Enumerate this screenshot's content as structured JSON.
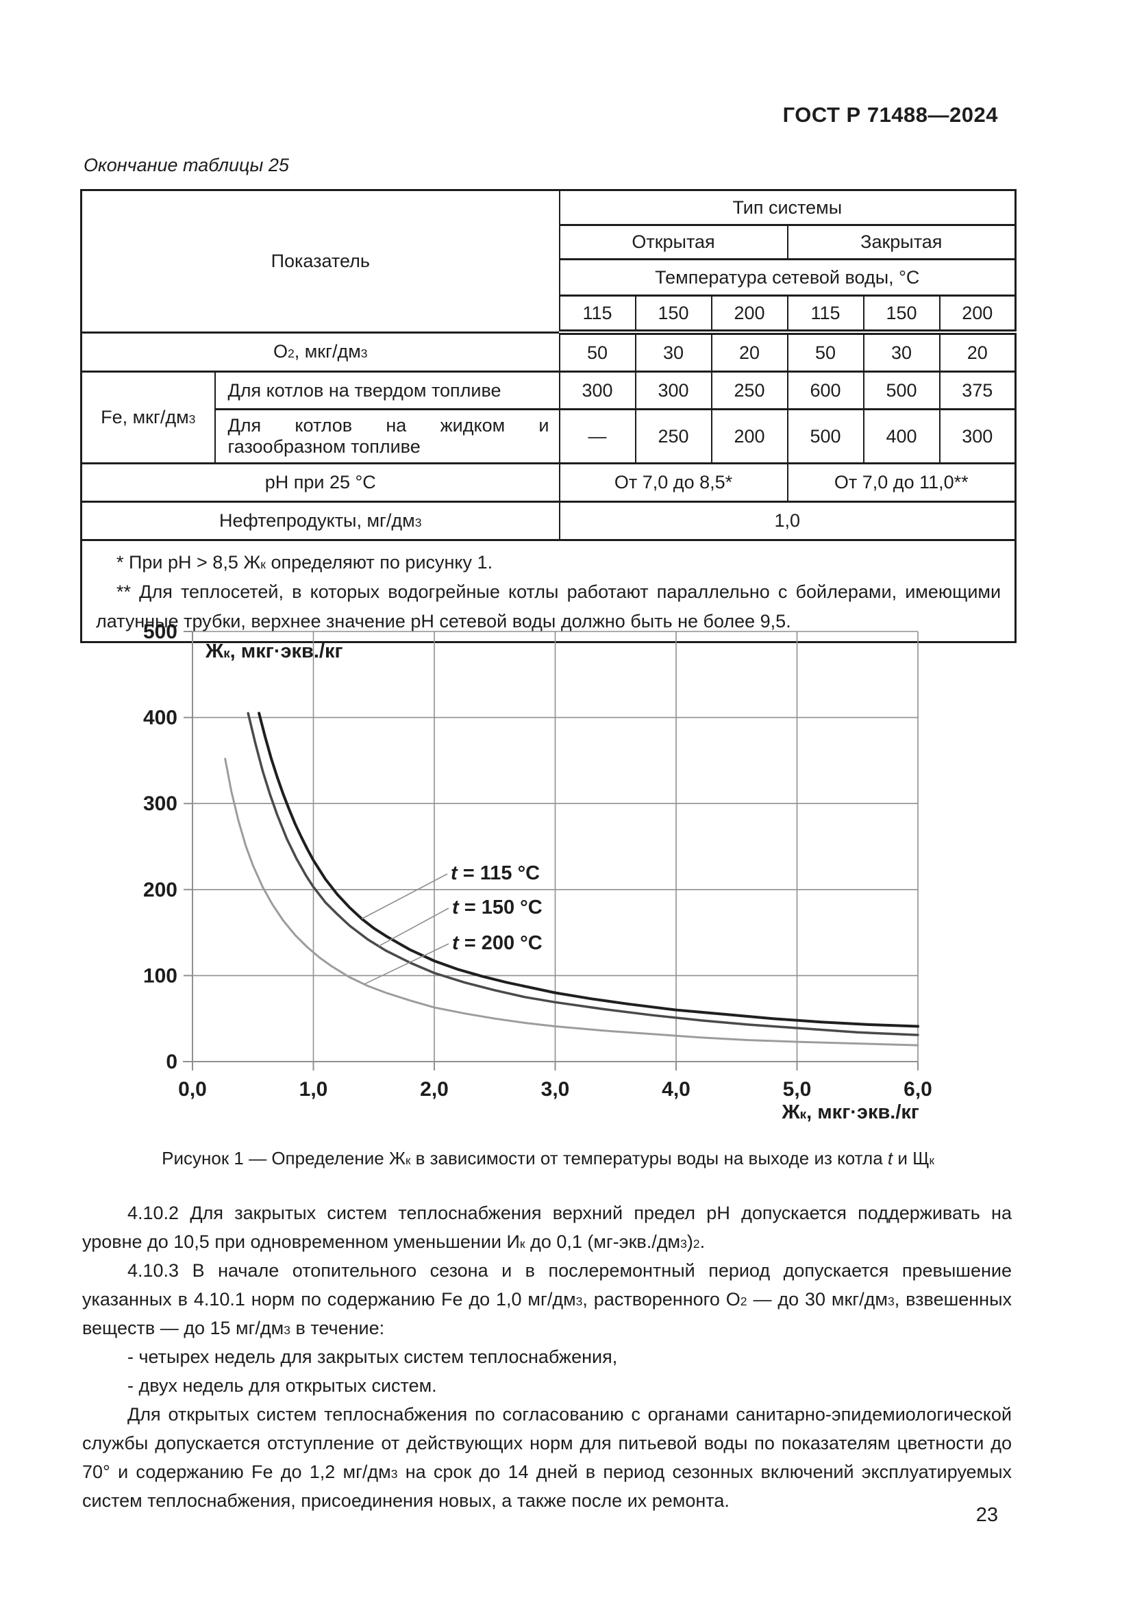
{
  "doc": {
    "header": "ГОСТ Р 71488—2024",
    "page_number": "23"
  },
  "table": {
    "caption": "Окончание таблицы 25",
    "header": {
      "pokazatel": "Показатель",
      "tip_sistemy": "Тип системы",
      "otkrytaya": "Открытая",
      "zakrytaya": "Закрытая",
      "temperatura": "Температура сетевой воды, °С",
      "ticks": [
        "115",
        "150",
        "200",
        "115",
        "150",
        "200"
      ]
    },
    "rows": {
      "o2": {
        "label_runs": [
          {
            "t": "О"
          },
          {
            "sub": "2"
          },
          {
            "t": ", мкг/дм"
          },
          {
            "sup": "3"
          }
        ],
        "values": [
          "50",
          "30",
          "20",
          "50",
          "30",
          "20"
        ]
      },
      "fe": {
        "label_runs": [
          {
            "t": "Fe, мкг/дм"
          },
          {
            "sup": "3"
          }
        ],
        "sub1": {
          "label": "Для котлов на твердом топливе",
          "values": [
            "300",
            "300",
            "250",
            "600",
            "500",
            "375"
          ]
        },
        "sub2": {
          "label": "Для котлов на жидком и газообразном топливе",
          "values": [
            "—",
            "250",
            "200",
            "500",
            "400",
            "300"
          ]
        }
      },
      "ph": {
        "label": "pH при 25 °С",
        "open": "От 7,0 до 8,5*",
        "closed": "От 7,0 до 11,0**"
      },
      "neft": {
        "label_runs": [
          {
            "t": "Нефтепродукты, мг/дм"
          },
          {
            "sup": "3"
          }
        ],
        "value": "1,0"
      }
    },
    "footnotes": [
      [
        {
          "t": "*  При pH > 8,5 Ж"
        },
        {
          "sub": "к"
        },
        {
          "t": " определяют по рисунку 1."
        }
      ],
      [
        {
          "t": "**  Для теплосетей, в которых водогрейные котлы работают параллельно с бойлерами, имеющими латунные трубки, верхнее значение pH сетевой воды должно быть не более 9,5."
        }
      ]
    ]
  },
  "chart_data": {
    "type": "line",
    "title": "",
    "xlabel": "Жк, мкг·экв./кг",
    "ylabel": "Жк, мкг·экв./кг",
    "xlim": [
      0,
      6
    ],
    "ylim": [
      0,
      500
    ],
    "grid": true,
    "x_ticks": [
      "0,0",
      "1,0",
      "2,0",
      "3,0",
      "4,0",
      "5,0",
      "6,0"
    ],
    "y_ticks": [
      "0",
      "100",
      "200",
      "300",
      "400",
      "500"
    ],
    "y_unit_runs": [
      {
        "t": "Ж"
      },
      {
        "sub": "к"
      },
      {
        "t": ", мкг·экв./кг"
      }
    ],
    "x_unit_runs": [
      {
        "t": "Ж"
      },
      {
        "sub": "к"
      },
      {
        "t": ", мкг·экв./кг"
      }
    ],
    "series": [
      {
        "name": "t = 115 °C",
        "color": "#1f1f1f",
        "width": 4,
        "points": [
          [
            0.55,
            405
          ],
          [
            0.6,
            378
          ],
          [
            0.65,
            353
          ],
          [
            0.7,
            331
          ],
          [
            0.75,
            311
          ],
          [
            0.8,
            293
          ],
          [
            0.85,
            276
          ],
          [
            0.9,
            261
          ],
          [
            0.95,
            247
          ],
          [
            1.0,
            234
          ],
          [
            1.1,
            212
          ],
          [
            1.2,
            194
          ],
          [
            1.3,
            179
          ],
          [
            1.4,
            166
          ],
          [
            1.5,
            155
          ],
          [
            1.6,
            146
          ],
          [
            1.8,
            130
          ],
          [
            2.0,
            117
          ],
          [
            2.2,
            107
          ],
          [
            2.4,
            99
          ],
          [
            2.6,
            92
          ],
          [
            2.8,
            86
          ],
          [
            3.0,
            80
          ],
          [
            3.3,
            73
          ],
          [
            3.6,
            67
          ],
          [
            4.0,
            60
          ],
          [
            4.4,
            55
          ],
          [
            4.8,
            50
          ],
          [
            5.2,
            46
          ],
          [
            5.6,
            43
          ],
          [
            6.0,
            41
          ]
        ]
      },
      {
        "name": "t = 150 °C",
        "color": "#4a4a4a",
        "width": 3.5,
        "points": [
          [
            0.46,
            405
          ],
          [
            0.52,
            370
          ],
          [
            0.58,
            338
          ],
          [
            0.64,
            311
          ],
          [
            0.7,
            287
          ],
          [
            0.78,
            259
          ],
          [
            0.86,
            236
          ],
          [
            0.94,
            216
          ],
          [
            1.0,
            203
          ],
          [
            1.1,
            185
          ],
          [
            1.2,
            171
          ],
          [
            1.3,
            158
          ],
          [
            1.45,
            142
          ],
          [
            1.6,
            129
          ],
          [
            1.8,
            115
          ],
          [
            2.0,
            103
          ],
          [
            2.25,
            92
          ],
          [
            2.5,
            83
          ],
          [
            2.75,
            75
          ],
          [
            3.0,
            69
          ],
          [
            3.4,
            61
          ],
          [
            3.8,
            54
          ],
          [
            4.2,
            48
          ],
          [
            4.6,
            43
          ],
          [
            5.0,
            39
          ],
          [
            5.5,
            34
          ],
          [
            6.0,
            31
          ]
        ]
      },
      {
        "name": "t = 200 °C",
        "color": "#9c9c9c",
        "width": 3,
        "points": [
          [
            0.27,
            352
          ],
          [
            0.32,
            315
          ],
          [
            0.38,
            280
          ],
          [
            0.44,
            251
          ],
          [
            0.5,
            228
          ],
          [
            0.58,
            203
          ],
          [
            0.66,
            183
          ],
          [
            0.75,
            164
          ],
          [
            0.85,
            147
          ],
          [
            0.95,
            133
          ],
          [
            1.05,
            121
          ],
          [
            1.15,
            111
          ],
          [
            1.3,
            98
          ],
          [
            1.45,
            88
          ],
          [
            1.6,
            80
          ],
          [
            1.8,
            71
          ],
          [
            2.0,
            63
          ],
          [
            2.25,
            56
          ],
          [
            2.5,
            50
          ],
          [
            2.75,
            45
          ],
          [
            3.0,
            41
          ],
          [
            3.4,
            36
          ],
          [
            3.8,
            32
          ],
          [
            4.2,
            28
          ],
          [
            4.6,
            25
          ],
          [
            5.0,
            23
          ],
          [
            5.5,
            21
          ],
          [
            6.0,
            19
          ]
        ]
      }
    ],
    "labels": [
      {
        "runs": [
          {
            "i": "t"
          },
          {
            "t": " = 115 °C"
          }
        ],
        "px": [
          658,
          1259
        ],
        "anchor_x": 1.4,
        "series": 0
      },
      {
        "runs": [
          {
            "i": "t"
          },
          {
            "t": " = 150 °C"
          }
        ],
        "px": [
          660,
          1309
        ],
        "anchor_x": 1.54,
        "series": 1
      },
      {
        "runs": [
          {
            "i": "t"
          },
          {
            "t": " = 200 °C"
          }
        ],
        "px": [
          660,
          1361
        ],
        "anchor_x": 1.42,
        "series": 2
      }
    ]
  },
  "figure": {
    "caption_runs": [
      {
        "t": "Рисунок 1 — Определение Ж"
      },
      {
        "sub": "к"
      },
      {
        "t": " в зависимости от температуры воды на выходе из котла "
      },
      {
        "i": "t"
      },
      {
        "t": " и Щ"
      },
      {
        "sub": "к"
      }
    ]
  },
  "body": {
    "paragraphs": [
      {
        "cls": "",
        "runs": [
          {
            "t": "4.10.2  Для закрытых систем теплоснабжения верхний предел pH допускается поддерживать на уровне до 10,5 при одновременном уменьшении И"
          },
          {
            "sub": "к"
          },
          {
            "t": " до 0,1 (мг-экв./дм"
          },
          {
            "sup": "3"
          },
          {
            "t": ")"
          },
          {
            "sup": "2"
          },
          {
            "t": "."
          }
        ]
      },
      {
        "cls": "",
        "runs": [
          {
            "t": "4.10.3  В начале отопительного сезона и в послеремонтный период допускается превышение указанных в 4.10.1 норм по содержанию Fe до 1,0 мг/дм"
          },
          {
            "sup": "3"
          },
          {
            "t": ", растворенного О"
          },
          {
            "sub": "2"
          },
          {
            "t": " — до 30 мкг/дм"
          },
          {
            "sup": "3"
          },
          {
            "t": ", взвешенных веществ — до 15 мг/дм"
          },
          {
            "sup": "3"
          },
          {
            "t": " в течение:"
          }
        ]
      },
      {
        "cls": "nojust",
        "runs": [
          {
            "t": "- четырех недель для закрытых систем теплоснабжения,"
          }
        ]
      },
      {
        "cls": "nojust",
        "runs": [
          {
            "t": "- двух недель для открытых систем."
          }
        ]
      },
      {
        "cls": "",
        "runs": [
          {
            "t": "Для открытых систем теплоснабжения по согласованию с органами санитарно-эпидемиологической службы допускается отступление от действующих норм для питьевой воды по показателям цветности до 70° и содержанию Fe до 1,2 мг/дм"
          },
          {
            "sup": "3"
          },
          {
            "t": " на срок до 14 дней в период сезонных включений эксплуатируемых систем теплоснабжения, присоединения новых, а также после их ремонта."
          }
        ]
      }
    ]
  }
}
